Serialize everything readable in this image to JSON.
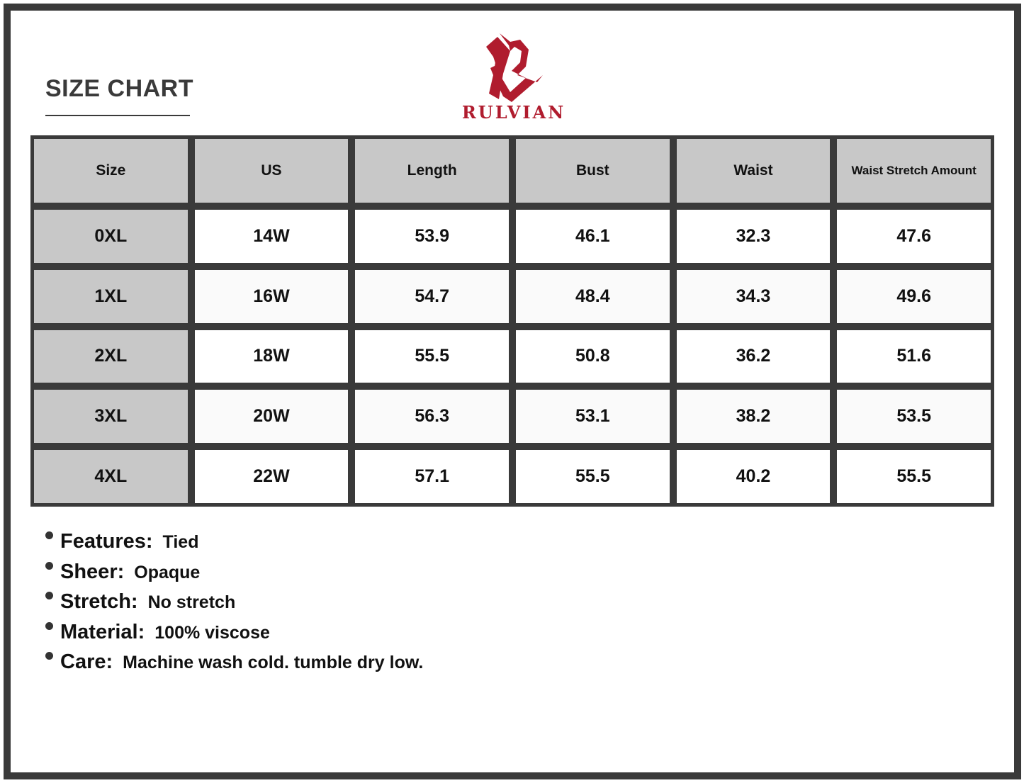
{
  "title": "SIZE CHART",
  "brand": {
    "name": "RULVIAN",
    "color": "#b01c2e"
  },
  "table": {
    "headers": [
      "Size",
      "US",
      "Length",
      "Bust",
      "Waist",
      "Waist Stretch Amount"
    ],
    "rows": [
      [
        "0XL",
        "14W",
        "53.9",
        "46.1",
        "32.3",
        "47.6"
      ],
      [
        "1XL",
        "16W",
        "54.7",
        "48.4",
        "34.3",
        "49.6"
      ],
      [
        "2XL",
        "18W",
        "55.5",
        "50.8",
        "36.2",
        "51.6"
      ],
      [
        "3XL",
        "20W",
        "56.3",
        "53.1",
        "38.2",
        "53.5"
      ],
      [
        "4XL",
        "22W",
        "57.1",
        "55.5",
        "40.2",
        "55.5"
      ]
    ]
  },
  "features": [
    {
      "label": "Features:",
      "value": "Tied"
    },
    {
      "label": "Sheer:",
      "value": "Opaque"
    },
    {
      "label": "Stretch:",
      "value": "No stretch"
    },
    {
      "label": "Material:",
      "value": "100% viscose"
    },
    {
      "label": "Care:",
      "value": "Machine wash cold. tumble dry low."
    }
  ]
}
